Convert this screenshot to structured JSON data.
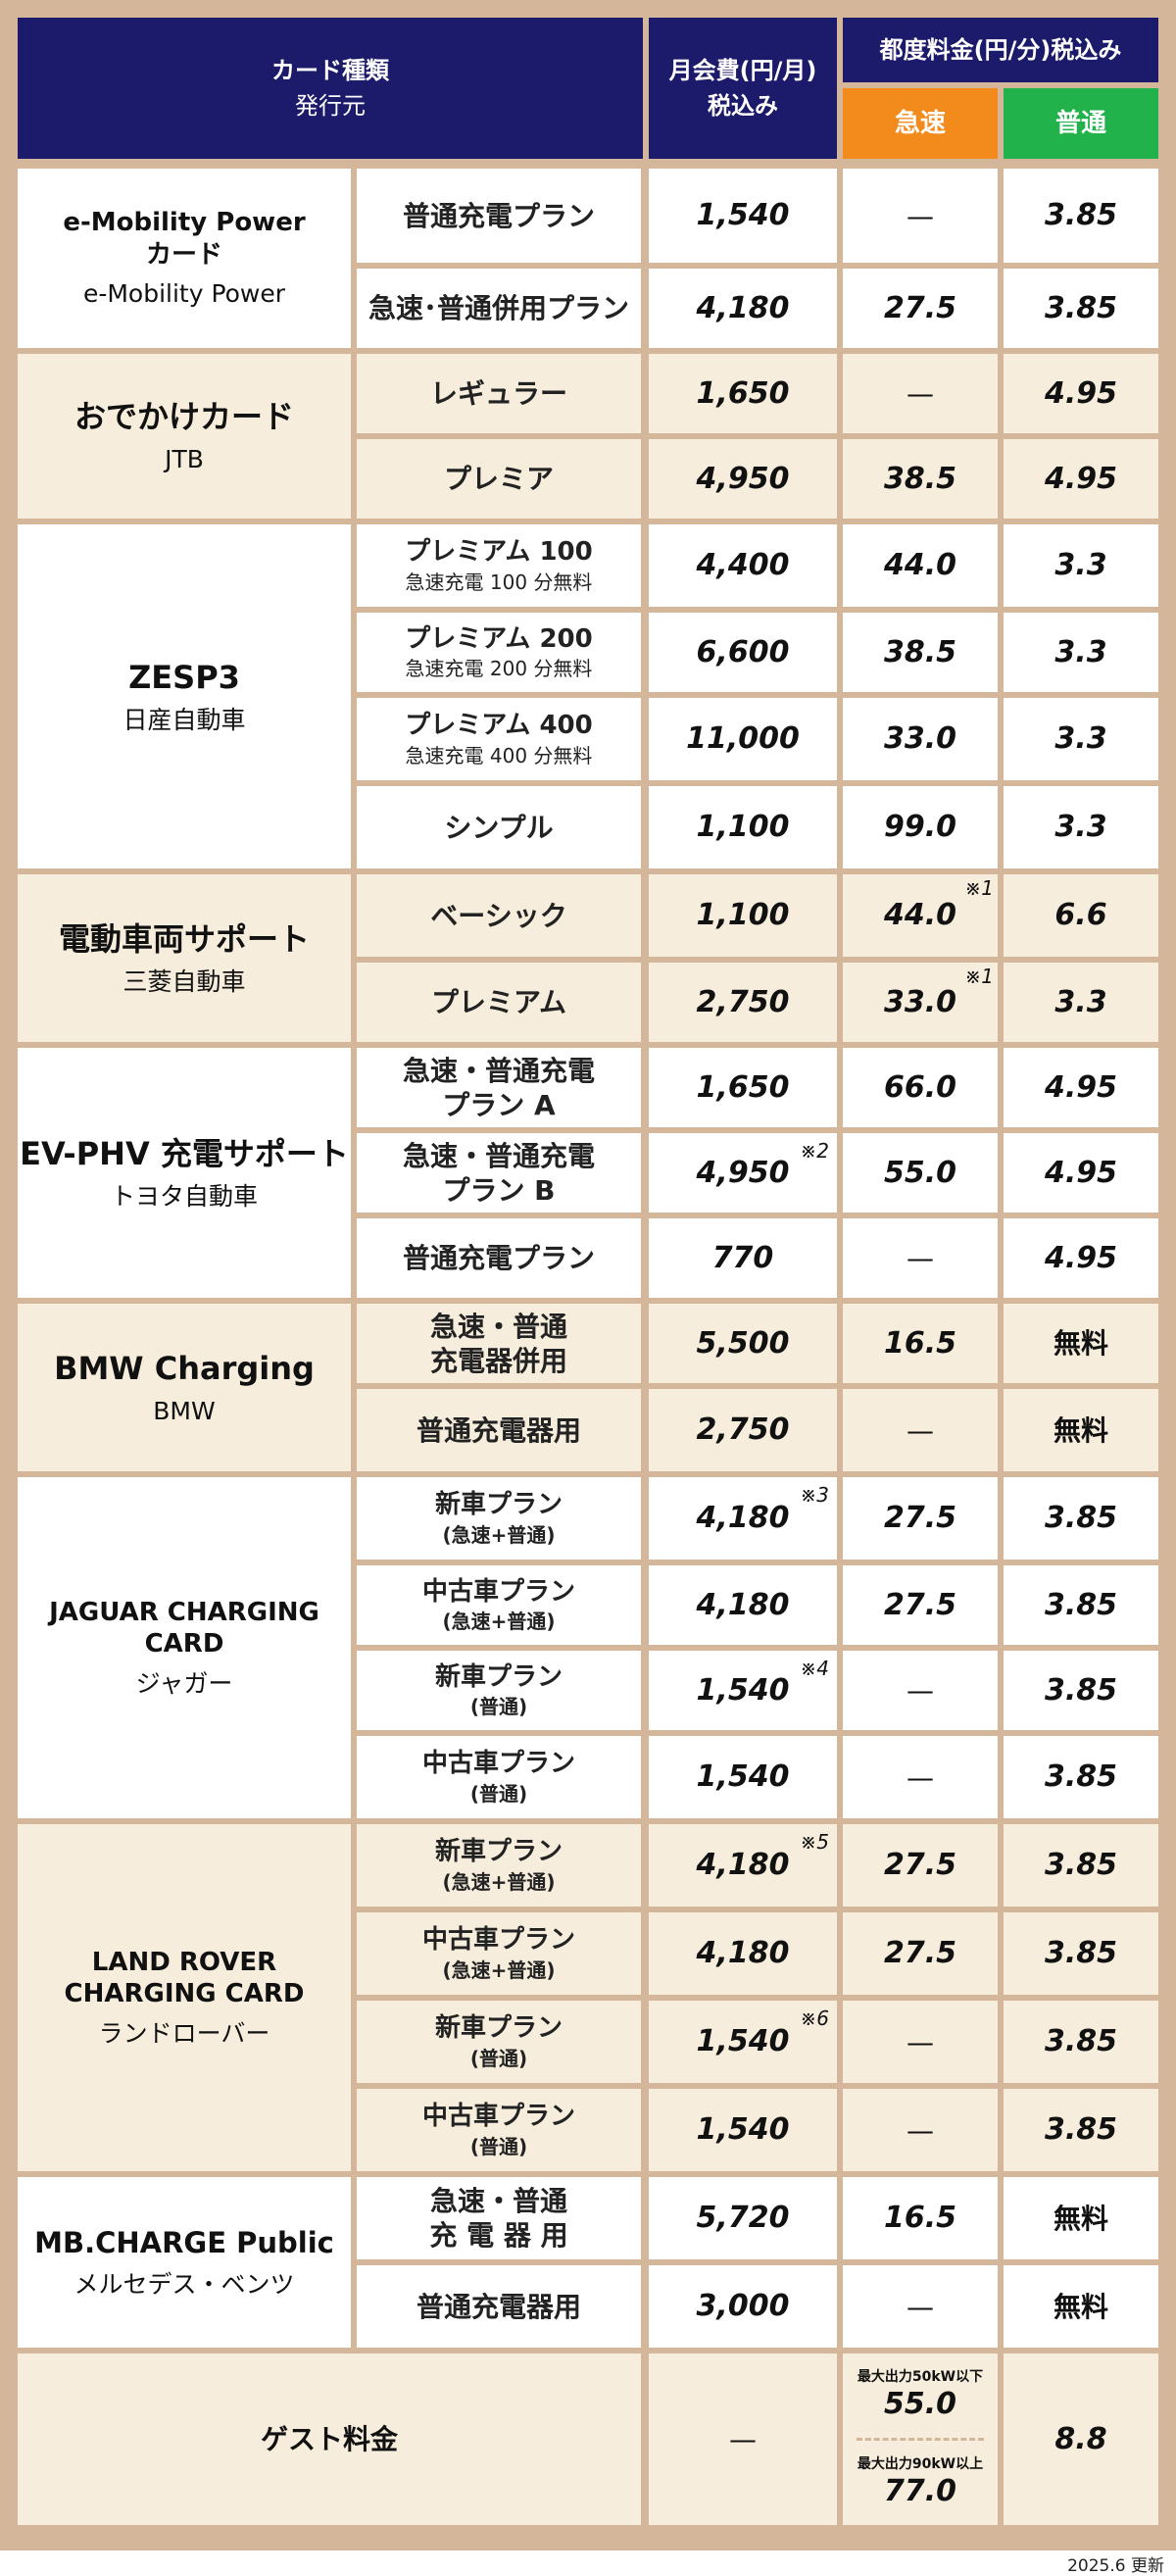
{
  "header": {
    "card_type": "カード種類",
    "issuer": "発行元",
    "monthly_fee": "月会費(円/月)",
    "tax_included": "税込み",
    "per_use": "都度料金(円/分)税込み",
    "fast": "急速",
    "normal": "普通"
  },
  "colors": {
    "header_bg": "#1c1a6a",
    "fast_bg": "#f28a1c",
    "normal_bg": "#21b24b",
    "cream": "#f6eddc",
    "frame": "#d4b69a"
  },
  "cards": [
    {
      "name": "e-Mobility Power\nカード",
      "issuer": "e-Mobility Power",
      "plans": [
        {
          "plan": "普通充電プラン",
          "monthly": "1,540",
          "fast": "—",
          "normal": "3.85"
        },
        {
          "plan": "急速･普通併用プラン",
          "monthly": "4,180",
          "fast": "27.5",
          "normal": "3.85"
        }
      ]
    },
    {
      "name": "おでかけカード",
      "issuer": "JTB",
      "plans": [
        {
          "plan": "レギュラー",
          "monthly": "1,650",
          "fast": "—",
          "normal": "4.95"
        },
        {
          "plan": "プレミア",
          "monthly": "4,950",
          "fast": "38.5",
          "normal": "4.95"
        }
      ]
    },
    {
      "name": "ZESP3",
      "issuer": "日産自動車",
      "plans": [
        {
          "plan": "プレミアム 100",
          "note": "急速充電 100 分無料",
          "monthly": "4,400",
          "fast": "44.0",
          "normal": "3.3"
        },
        {
          "plan": "プレミアム 200",
          "note": "急速充電 200 分無料",
          "monthly": "6,600",
          "fast": "38.5",
          "normal": "3.3"
        },
        {
          "plan": "プレミアム 400",
          "note": "急速充電 400 分無料",
          "monthly": "11,000",
          "fast": "33.0",
          "normal": "3.3"
        },
        {
          "plan": "シンプル",
          "monthly": "1,100",
          "fast": "99.0",
          "normal": "3.3"
        }
      ]
    },
    {
      "name": "電動車両サポート",
      "issuer": "三菱自動車",
      "plans": [
        {
          "plan": "ベーシック",
          "monthly": "1,100",
          "fast": "44.0",
          "fast_mark": "※1",
          "normal": "6.6"
        },
        {
          "plan": "プレミアム",
          "monthly": "2,750",
          "fast": "33.0",
          "fast_mark": "※1",
          "normal": "3.3"
        }
      ]
    },
    {
      "name": "EV-PHV 充電サポート",
      "issuer": "トヨタ自動車",
      "plans": [
        {
          "plan": "急速・普通充電\nプラン A",
          "monthly": "1,650",
          "fast": "66.0",
          "normal": "4.95"
        },
        {
          "plan": "急速・普通充電\nプラン B",
          "monthly": "4,950",
          "monthly_mark": "※2",
          "fast": "55.0",
          "normal": "4.95"
        },
        {
          "plan": "普通充電プラン",
          "monthly": "770",
          "fast": "—",
          "normal": "4.95"
        }
      ]
    },
    {
      "name": "BMW Charging",
      "issuer": "BMW",
      "plans": [
        {
          "plan": "急速・普通\n充電器併用",
          "monthly": "5,500",
          "fast": "16.5",
          "normal": "無料"
        },
        {
          "plan": "普通充電器用",
          "monthly": "2,750",
          "fast": "—",
          "normal": "無料"
        }
      ]
    },
    {
      "name": "JAGUAR CHARGING CARD",
      "issuer": "ジャガー",
      "plans": [
        {
          "plan": "新車プラン",
          "paren": "(急速+普通)",
          "monthly": "4,180",
          "monthly_mark": "※3",
          "fast": "27.5",
          "normal": "3.85"
        },
        {
          "plan": "中古車プラン",
          "paren": "(急速+普通)",
          "monthly": "4,180",
          "fast": "27.5",
          "normal": "3.85"
        },
        {
          "plan": "新車プラン",
          "paren": "(普通)",
          "monthly": "1,540",
          "monthly_mark": "※4",
          "fast": "—",
          "normal": "3.85"
        },
        {
          "plan": "中古車プラン",
          "paren": "(普通)",
          "monthly": "1,540",
          "fast": "—",
          "normal": "3.85"
        }
      ]
    },
    {
      "name": "LAND ROVER\nCHARGING CARD",
      "issuer": "ランドローバー",
      "plans": [
        {
          "plan": "新車プラン",
          "paren": "(急速+普通)",
          "monthly": "4,180",
          "monthly_mark": "※5",
          "fast": "27.5",
          "normal": "3.85"
        },
        {
          "plan": "中古車プラン",
          "paren": "(急速+普通)",
          "monthly": "4,180",
          "fast": "27.5",
          "normal": "3.85"
        },
        {
          "plan": "新車プラン",
          "paren": "(普通)",
          "monthly": "1,540",
          "monthly_mark": "※6",
          "fast": "—",
          "normal": "3.85"
        },
        {
          "plan": "中古車プラン",
          "paren": "(普通)",
          "monthly": "1,540",
          "fast": "—",
          "normal": "3.85"
        }
      ]
    },
    {
      "name": "MB.CHARGE Public",
      "issuer": "メルセデス・ベンツ",
      "plans": [
        {
          "plan": "急速・普通\n充 電 器 用",
          "monthly": "5,720",
          "fast": "16.5",
          "normal": "無料"
        },
        {
          "plan": "普通充電器用",
          "monthly": "3,000",
          "fast": "—",
          "normal": "無料"
        }
      ]
    }
  ],
  "guest": {
    "label": "ゲスト料金",
    "monthly": "—",
    "fast_low_label": "最大出力50kW以下",
    "fast_low": "55.0",
    "fast_high_label": "最大出力90kW以上",
    "fast_high": "77.0",
    "normal": "8.8"
  },
  "updated": "2025.6 更新"
}
